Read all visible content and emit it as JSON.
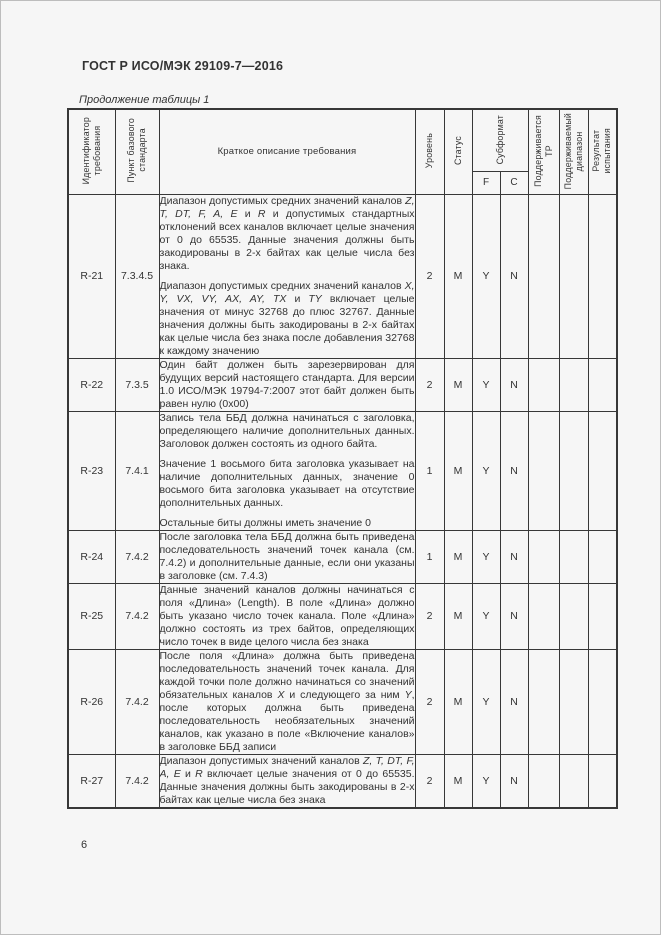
{
  "page": {
    "doc_code": "ГОСТ Р ИСО/МЭК 29109-7—2016",
    "table_caption": "Продолжение таблицы 1",
    "page_number": "6"
  },
  "table": {
    "headers": {
      "req_id": "Идентификатор\nтребования",
      "clause": "Пункт базового\nстандарта",
      "description": "Краткое описание требования",
      "level": "Уровень",
      "status": "Статус",
      "subformat": "Субформат",
      "subformat_f": "F",
      "subformat_c": "C",
      "supported_tr": "Поддерживается\nТР",
      "supported_range": "Поддерживаемый\nдиапазон",
      "test_result": "Результат\nиспытания"
    },
    "rows": [
      {
        "id": "R-21",
        "clause": "7.3.4.5",
        "paragraphs": [
          "Диапазон допустимых средних значений каналов <i>Z, T, DT, F, A, E</i> и <i>R</i> и допустимых стандартных отклонений всех каналов включает целые значения от 0 до 65535. Данные значения должны быть закодированы в 2-х байтах как целые числа без знака.",
          "Диапазон допустимых средних значений каналов <i>X, Y, VX, VY, AX, AY, TX</i> и <i>TY</i> включает целые значения от минус 32768 до плюс 32767. Данные значения должны быть закодированы в 2-х байтах как целые числа без знака после добавления 32768 к каждому значению"
        ],
        "level": "2",
        "status": "M",
        "f": "Y",
        "c": "N",
        "supported_tr": "",
        "supported_range": "",
        "test_result": ""
      },
      {
        "id": "R-22",
        "clause": "7.3.5",
        "paragraphs": [
          "Один байт должен быть зарезервирован для будущих версий настоящего стандарта. Для версии 1.0 ИСО/МЭК 19794-7:2007 этот байт должен быть равен нулю (0x00)"
        ],
        "level": "2",
        "status": "M",
        "f": "Y",
        "c": "N",
        "supported_tr": "",
        "supported_range": "",
        "test_result": ""
      },
      {
        "id": "R-23",
        "clause": "7.4.1",
        "paragraphs": [
          "Запись тела ББД должна начинаться с заголовка, определяющего наличие дополнительных данных. Заголовок должен состоять из одного байта.",
          "Значение 1 восьмого бита заголовка указывает на наличие дополнительных данных, значение 0 восьмого бита заголовка указывает на отсутствие дополнительных данных.",
          "Остальные биты должны иметь значение 0"
        ],
        "level": "1",
        "status": "M",
        "f": "Y",
        "c": "N",
        "supported_tr": "",
        "supported_range": "",
        "test_result": ""
      },
      {
        "id": "R-24",
        "clause": "7.4.2",
        "paragraphs": [
          "После заголовка тела ББД должна быть приведена последовательность значений точек канала (см. 7.4.2) и дополнительные данные, если они указаны в заголовке (см. 7.4.3)"
        ],
        "level": "1",
        "status": "M",
        "f": "Y",
        "c": "N",
        "supported_tr": "",
        "supported_range": "",
        "test_result": ""
      },
      {
        "id": "R-25",
        "clause": "7.4.2",
        "paragraphs": [
          "Данные значений каналов должны начинаться с поля «Длина» (Length). В поле «Длина» должно быть указано число точек канала. Поле «Длина» должно состоять из трех байтов, определяющих число точек в виде целого числа без знака"
        ],
        "level": "2",
        "status": "M",
        "f": "Y",
        "c": "N",
        "supported_tr": "",
        "supported_range": "",
        "test_result": ""
      },
      {
        "id": "R-26",
        "clause": "7.4.2",
        "paragraphs": [
          "После поля «Длина» должна быть приведена последовательность значений точек канала. Для каждой точки поле должно начинаться со значений обязательных каналов <i>X</i> и следующего за ним <i>Y</i>, после которых должна быть приведена последовательность необязательных значений каналов, как указано в поле «Включение каналов» в заголовке ББД записи"
        ],
        "level": "2",
        "status": "M",
        "f": "Y",
        "c": "N",
        "supported_tr": "",
        "supported_range": "",
        "test_result": ""
      },
      {
        "id": "R-27",
        "clause": "7.4.2",
        "paragraphs": [
          "Диапазон допустимых значений каналов <i>Z, T, DT, F, A, E</i> и <i>R</i> включает целые значения от 0 до 65535. Данные значения должны быть закодированы в 2-х байтах как целые числа без знака"
        ],
        "level": "2",
        "status": "M",
        "f": "Y",
        "c": "N",
        "supported_tr": "",
        "supported_range": "",
        "test_result": ""
      }
    ]
  }
}
